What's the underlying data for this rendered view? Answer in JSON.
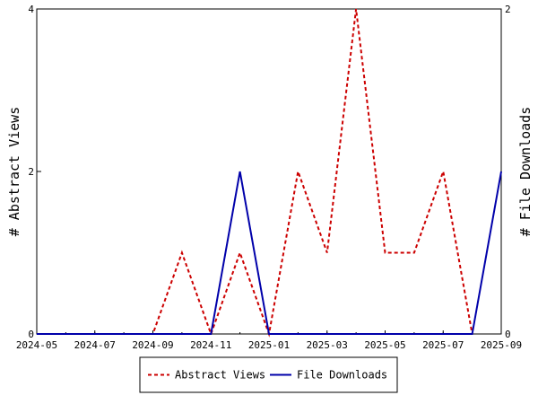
{
  "chart_data": {
    "type": "line",
    "xlabel": "",
    "ylabel_left": "# Abstract Views",
    "ylabel_right": "# File Downloads",
    "x_tick_labels": [
      "2024-05",
      "2024-07",
      "2024-09",
      "2024-11",
      "2025-01",
      "2025-03",
      "2025-05",
      "2025-07",
      "2025-09"
    ],
    "x_months": [
      "2024-05",
      "2024-06",
      "2024-07",
      "2024-08",
      "2024-09",
      "2024-10",
      "2024-11",
      "2024-12",
      "2025-01",
      "2025-02",
      "2025-03",
      "2025-04",
      "2025-05",
      "2025-06",
      "2025-07",
      "2025-08",
      "2025-09"
    ],
    "ylim_left": [
      0,
      4
    ],
    "ylim_right": [
      0,
      2
    ],
    "y_ticks_left": [
      "0",
      "2",
      "4"
    ],
    "y_ticks_right": [
      "0",
      "2"
    ],
    "grid": false,
    "legend_position": "bottom",
    "series": [
      {
        "name": "Abstract Views",
        "axis": "left",
        "color": "#cc0000",
        "style": "dashed",
        "x": [
          "2024-05",
          "2024-06",
          "2024-07",
          "2024-08",
          "2024-09",
          "2024-10",
          "2024-11",
          "2024-12",
          "2025-01",
          "2025-02",
          "2025-03",
          "2025-04",
          "2025-05",
          "2025-06",
          "2025-07",
          "2025-08"
        ],
        "values": [
          0,
          0,
          0,
          0,
          0,
          1,
          0,
          1,
          0,
          2,
          1,
          4,
          1,
          1,
          2,
          0
        ]
      },
      {
        "name": "File Downloads",
        "axis": "right",
        "color": "#0000aa",
        "style": "solid",
        "x": [
          "2024-05",
          "2024-06",
          "2024-07",
          "2024-08",
          "2024-09",
          "2024-10",
          "2024-11",
          "2024-12",
          "2025-01",
          "2025-02",
          "2025-03",
          "2025-04",
          "2025-05",
          "2025-06",
          "2025-07",
          "2025-08",
          "2025-09"
        ],
        "values": [
          0,
          0,
          0,
          0,
          0,
          0,
          0,
          1,
          0,
          0,
          0,
          0,
          0,
          0,
          0,
          0,
          1
        ]
      }
    ]
  }
}
